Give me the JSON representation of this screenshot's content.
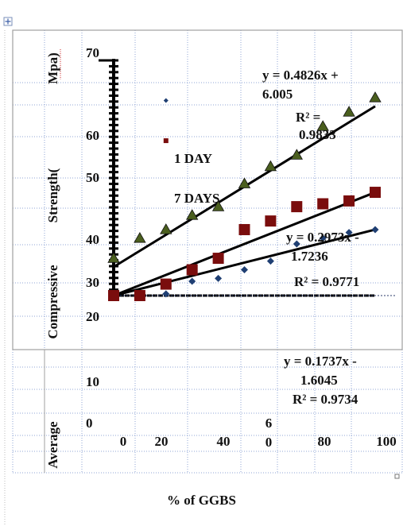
{
  "chart_data": {
    "type": "scatter",
    "title": "",
    "xlabel": "% of GGBS",
    "ylabel_words": [
      "Average",
      "Compressive",
      "Strength(",
      "Mpa)"
    ],
    "upper_y_ticks": [
      "70",
      "60",
      "50",
      "40",
      "30",
      "20"
    ],
    "lower_y_ticks": [
      "10",
      "0"
    ],
    "x_ticks": [
      "0",
      "20",
      "40",
      "6\n0",
      "80",
      "100"
    ],
    "grid": true,
    "legend": "none",
    "axis_ranges": {
      "x": [
        0,
        100
      ],
      "y": [
        29,
        70
      ]
    },
    "series": [
      {
        "name": "1 DAY",
        "marker": "diamond",
        "color": "#1f3f73",
        "points": [
          [
            0,
            29
          ],
          [
            10,
            29
          ],
          [
            20,
            29.3
          ],
          [
            30,
            31.5
          ],
          [
            40,
            32
          ],
          [
            50,
            33.5
          ],
          [
            60,
            35
          ],
          [
            70,
            38
          ],
          [
            80,
            39
          ],
          [
            90,
            40
          ],
          [
            100,
            40.5
          ]
        ]
      },
      {
        "name": "7 DAYS",
        "marker": "square",
        "color": "#7a0d0d",
        "points": [
          [
            0,
            29
          ],
          [
            10,
            29
          ],
          [
            20,
            31
          ],
          [
            30,
            33.5
          ],
          [
            40,
            35.5
          ],
          [
            50,
            40.5
          ],
          [
            60,
            42
          ],
          [
            70,
            44.5
          ],
          [
            80,
            45
          ],
          [
            90,
            45.5
          ],
          [
            100,
            47
          ]
        ]
      },
      {
        "name": "",
        "marker": "triangle",
        "color": "#4a5e1e",
        "points": [
          [
            0,
            35.5
          ],
          [
            10,
            39
          ],
          [
            20,
            40.5
          ],
          [
            30,
            43
          ],
          [
            40,
            44.5
          ],
          [
            50,
            48.5
          ],
          [
            60,
            51.5
          ],
          [
            70,
            53.5
          ],
          [
            80,
            58.5
          ],
          [
            90,
            61
          ],
          [
            100,
            63.5
          ]
        ]
      }
    ],
    "stray_markers": [
      {
        "marker": "diamond",
        "color": "#1f3f73",
        "x": 20,
        "y": 63
      },
      {
        "marker": "square",
        "color": "#7a0d0d",
        "x": 20,
        "y": 56
      }
    ],
    "trendlines": [
      {
        "from": [
          0,
          29
        ],
        "to": [
          100,
          40.5
        ]
      },
      {
        "from": [
          0,
          29
        ],
        "to": [
          100,
          47
        ]
      },
      {
        "from": [
          0,
          34
        ],
        "to": [
          100,
          62
        ]
      },
      {
        "from": [
          0,
          29
        ],
        "to": [
          100,
          29
        ]
      }
    ],
    "series_labels": [
      "1 DAY",
      "7 DAYS"
    ],
    "equations": [
      {
        "line1": "y = 0.4826x +",
        "line2": "6.005"
      },
      {
        "line1": "R² =",
        "line2": "0.9833"
      },
      {
        "line1": "y = 0.2973x -",
        "line2": "1.7236"
      },
      {
        "line1": "R² = 0.9771",
        "line2": ""
      },
      {
        "line1": "y = 0.1737x -",
        "line2": "1.6045"
      },
      {
        "line1": "R² = 0.9734",
        "line2": ""
      }
    ]
  }
}
